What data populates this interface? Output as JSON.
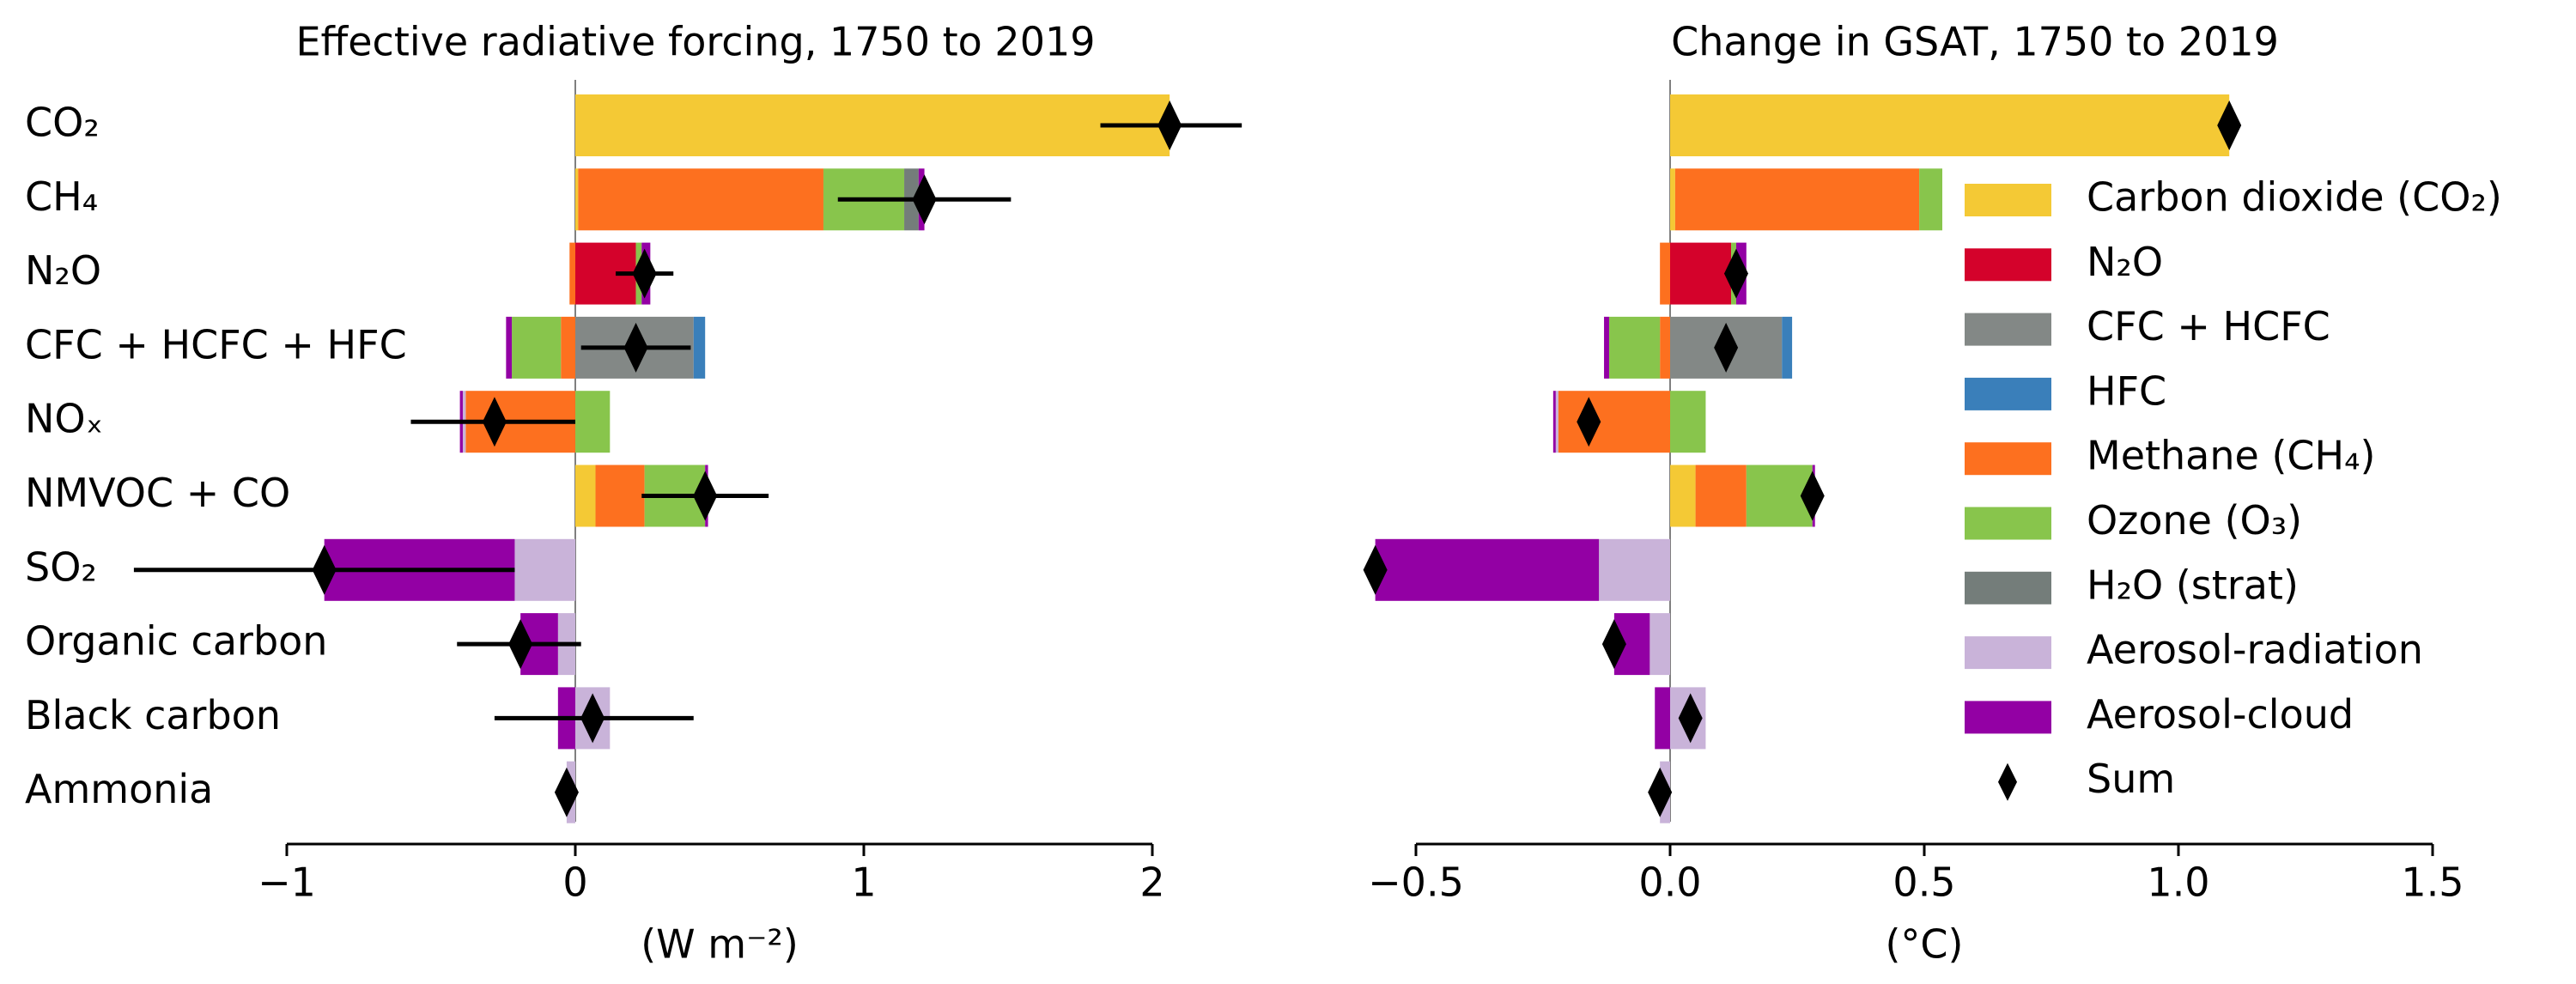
{
  "chart_data": [
    {
      "type": "bar",
      "orientation": "horizontal",
      "title": "Effective radiative forcing, 1750 to 2019",
      "xlabel": "(W m⁻²)",
      "categories": [
        "CO₂",
        "CH₄",
        "N₂O",
        "CFC + HCFC + HFC",
        "NOₓ",
        "NMVOC + CO",
        "SO₂",
        "Organic carbon",
        "Black carbon",
        "Ammonia"
      ],
      "xlim": [
        -1,
        2
      ],
      "xticks": [
        {
          "value": -1,
          "label": "−1"
        },
        0,
        1,
        2
      ],
      "series": [
        {
          "values": [
            2.06,
            0.01,
            0,
            0,
            0,
            0.07,
            0,
            0,
            0,
            0
          ]
        },
        {
          "values": [
            0,
            0,
            0.21,
            0,
            0,
            0,
            0,
            0,
            0,
            0
          ]
        },
        {
          "values": [
            0,
            0,
            0,
            0.41,
            0,
            0,
            0,
            0,
            0,
            0
          ]
        },
        {
          "values": [
            0,
            0,
            0,
            0.04,
            0,
            0,
            0,
            0,
            0,
            0
          ]
        },
        {
          "values": [
            0,
            0.85,
            -0.02,
            -0.05,
            -0.38,
            0.17,
            0,
            0,
            0,
            0
          ]
        },
        {
          "values": [
            0,
            0.28,
            0.02,
            -0.17,
            0.12,
            0.21,
            0,
            0,
            0,
            0
          ]
        },
        {
          "values": [
            0,
            0.05,
            0,
            0,
            0,
            0,
            0,
            0,
            0,
            0
          ]
        },
        {
          "values": [
            0,
            0,
            0,
            0,
            -0.01,
            0,
            -0.21,
            -0.06,
            0.12,
            -0.03
          ]
        },
        {
          "values": [
            0,
            0.02,
            0.03,
            -0.02,
            -0.01,
            0.01,
            -0.66,
            -0.13,
            -0.06,
            0
          ]
        }
      ],
      "sum": {
        "values": [
          2.06,
          1.21,
          0.24,
          0.21,
          -0.28,
          0.45,
          -0.87,
          -0.19,
          0.06,
          -0.03
        ],
        "ranges": [
          [
            1.82,
            2.31
          ],
          [
            0.91,
            1.51
          ],
          [
            0.14,
            0.34
          ],
          [
            0.02,
            0.4
          ],
          [
            -0.57,
            0.0
          ],
          [
            0.23,
            0.67
          ],
          [
            -1.53,
            -0.21
          ],
          [
            -0.41,
            0.02
          ],
          [
            -0.28,
            0.41
          ],
          null
        ]
      }
    },
    {
      "type": "bar",
      "orientation": "horizontal",
      "title": "Change in GSAT, 1750 to 2019",
      "xlabel": "(°C)",
      "xlim": [
        -0.5,
        1.5
      ],
      "xticks": [
        {
          "value": -0.5,
          "label": "−0.5"
        },
        {
          "value": 0,
          "label": "0.0"
        },
        0.5,
        {
          "value": 1,
          "label": "1.0"
        },
        1.5
      ],
      "series": [
        {
          "name": "Carbon dioxide (CO₂)",
          "color": "#f4c935",
          "values": [
            1.1,
            0.01,
            0,
            0,
            0,
            0.05,
            0,
            0,
            0,
            0
          ]
        },
        {
          "name": "N₂O",
          "color": "#d4022b",
          "values": [
            0,
            0,
            0.12,
            0,
            0,
            0,
            0,
            0,
            0,
            0
          ]
        },
        {
          "name": "CFC + HCFC",
          "color": "#838886",
          "values": [
            0,
            0,
            0,
            0.22,
            0,
            0,
            0,
            0,
            0,
            0
          ]
        },
        {
          "name": "HFC",
          "color": "#3a7fba",
          "values": [
            0,
            0,
            0,
            0.02,
            0,
            0,
            0,
            0,
            0,
            0
          ]
        },
        {
          "name": "Methane (CH₄)",
          "color": "#fd701f",
          "values": [
            0,
            0.48,
            -0.02,
            -0.02,
            -0.22,
            0.1,
            0,
            0,
            0,
            0
          ]
        },
        {
          "name": "Ozone (O₃)",
          "color": "#88c54c",
          "values": [
            0,
            0.16,
            0.01,
            -0.1,
            0.07,
            0.13,
            0,
            0,
            0,
            0
          ]
        },
        {
          "name": "H₂O (strat)",
          "color": "#747d7a",
          "values": [
            0,
            0.03,
            0,
            0,
            0,
            0,
            0,
            0,
            0,
            0
          ]
        },
        {
          "name": "Aerosol-radiation",
          "color": "#c9b3d9",
          "values": [
            0,
            0,
            0,
            0,
            -0.005,
            0,
            -0.14,
            -0.04,
            0.07,
            -0.02
          ]
        },
        {
          "name": "Aerosol-cloud",
          "color": "#9300a4",
          "values": [
            0,
            0.01,
            0.02,
            -0.01,
            -0.005,
            0.005,
            -0.44,
            -0.07,
            -0.03,
            0
          ]
        }
      ],
      "sum": {
        "name": "Sum",
        "values": [
          1.1,
          0.69,
          0.13,
          0.11,
          -0.16,
          0.28,
          -0.58,
          -0.11,
          0.04,
          -0.02
        ]
      }
    }
  ]
}
